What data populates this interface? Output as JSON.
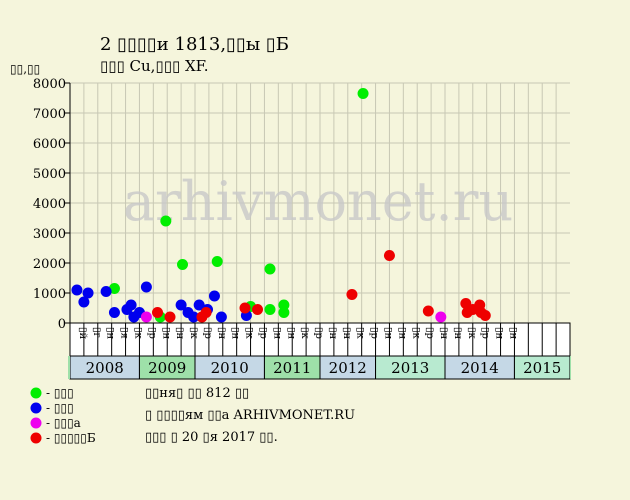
{
  "chart_data": {
    "type": "scatter",
    "title": "2 ▯▯▯▯и 1813,▯▯ы ▯Б",
    "subtitle": "▯▯▯ Cu,▯▯▯ XF.",
    "ylabel": "▯▯,▯▯",
    "ylim": [
      0,
      8000
    ],
    "yticks": [
      0,
      1000,
      2000,
      3000,
      4000,
      5000,
      6000,
      7000,
      8000
    ],
    "grid": true,
    "month_labels": [
      "▯й",
      "▯г",
      "▯н",
      "▯я",
      "▯к",
      "▯р",
      "▯н",
      "▯н",
      "▯к",
      "▯р",
      "▯н",
      "▯н",
      "▯к",
      "▯р",
      "▯н",
      "▯н",
      "▯к",
      "▯р",
      "▯н",
      "▯н",
      "▯к",
      "▯р",
      "▯н",
      "▯н",
      "▯к",
      "▯р",
      "▯н",
      "▯н",
      "▯к",
      "▯р",
      "▯н",
      "▯н"
    ],
    "years": [
      {
        "label": "2008",
        "start_slot": 0,
        "end_slot": 5,
        "color": "#c5d8e6"
      },
      {
        "label": "2009",
        "start_slot": 5,
        "end_slot": 9,
        "color": "#9ee0a9"
      },
      {
        "label": "2010",
        "start_slot": 9,
        "end_slot": 14,
        "color": "#c5d8e6"
      },
      {
        "label": "2011",
        "start_slot": 14,
        "end_slot": 18,
        "color": "#9ee0a9"
      },
      {
        "label": "2012",
        "start_slot": 18,
        "end_slot": 22,
        "color": "#c5d8e6"
      },
      {
        "label": "2013",
        "start_slot": 22,
        "end_slot": 27,
        "color": "#b8ead0"
      },
      {
        "label": "2014",
        "start_slot": 27,
        "end_slot": 32,
        "color": "#c5d8e6"
      },
      {
        "label": "2015",
        "start_slot": 32,
        "end_slot": 36,
        "color": "#b8ead0"
      }
    ],
    "series": [
      {
        "name": "▯▯▯",
        "color": "#00ee00",
        "points": [
          [
            3.2,
            1150
          ],
          [
            6.5,
            200
          ],
          [
            6.9,
            3400
          ],
          [
            8.1,
            1950
          ],
          [
            10.6,
            2050
          ],
          [
            13.0,
            550
          ],
          [
            14.4,
            1800
          ],
          [
            14.4,
            450
          ],
          [
            15.4,
            600
          ],
          [
            15.4,
            350
          ],
          [
            21.1,
            7650
          ]
        ]
      },
      {
        "name": "▯▯▯",
        "color": "#0000ee",
        "points": [
          [
            0.5,
            1100
          ],
          [
            1.0,
            700
          ],
          [
            1.3,
            1000
          ],
          [
            2.6,
            1050
          ],
          [
            3.2,
            350
          ],
          [
            4.1,
            450
          ],
          [
            4.4,
            600
          ],
          [
            4.6,
            200
          ],
          [
            5.0,
            350
          ],
          [
            5.5,
            1200
          ],
          [
            8.0,
            600
          ],
          [
            8.5,
            350
          ],
          [
            8.9,
            200
          ],
          [
            9.3,
            600
          ],
          [
            9.9,
            450
          ],
          [
            10.4,
            900
          ],
          [
            10.9,
            200
          ],
          [
            12.7,
            250
          ]
        ]
      },
      {
        "name": "▯▯▯а",
        "color": "#ee00ee",
        "points": [
          [
            5.5,
            200
          ],
          [
            26.7,
            200
          ]
        ]
      },
      {
        "name": "▯▯▯▯▯Б",
        "color": "#ee0000",
        "points": [
          [
            6.3,
            350
          ],
          [
            7.2,
            200
          ],
          [
            9.5,
            200
          ],
          [
            9.8,
            350
          ],
          [
            12.6,
            500
          ],
          [
            13.5,
            450
          ],
          [
            20.3,
            950
          ],
          [
            23.0,
            2250
          ],
          [
            25.8,
            400
          ],
          [
            28.5,
            650
          ],
          [
            28.6,
            350
          ],
          [
            29.0,
            450
          ],
          [
            29.5,
            600
          ],
          [
            29.6,
            350
          ],
          [
            29.9,
            250
          ]
        ]
      }
    ],
    "notes": [
      "▯▯ня▯ ▯▯ 812 ▯▯",
      "▯ ▯▯▯▯ям ▯▯а ARHIVMONET.RU",
      "▯▯▯ ▯ 20 ▯я 2017 ▯▯."
    ],
    "watermark": "arhivmonet.ru"
  }
}
